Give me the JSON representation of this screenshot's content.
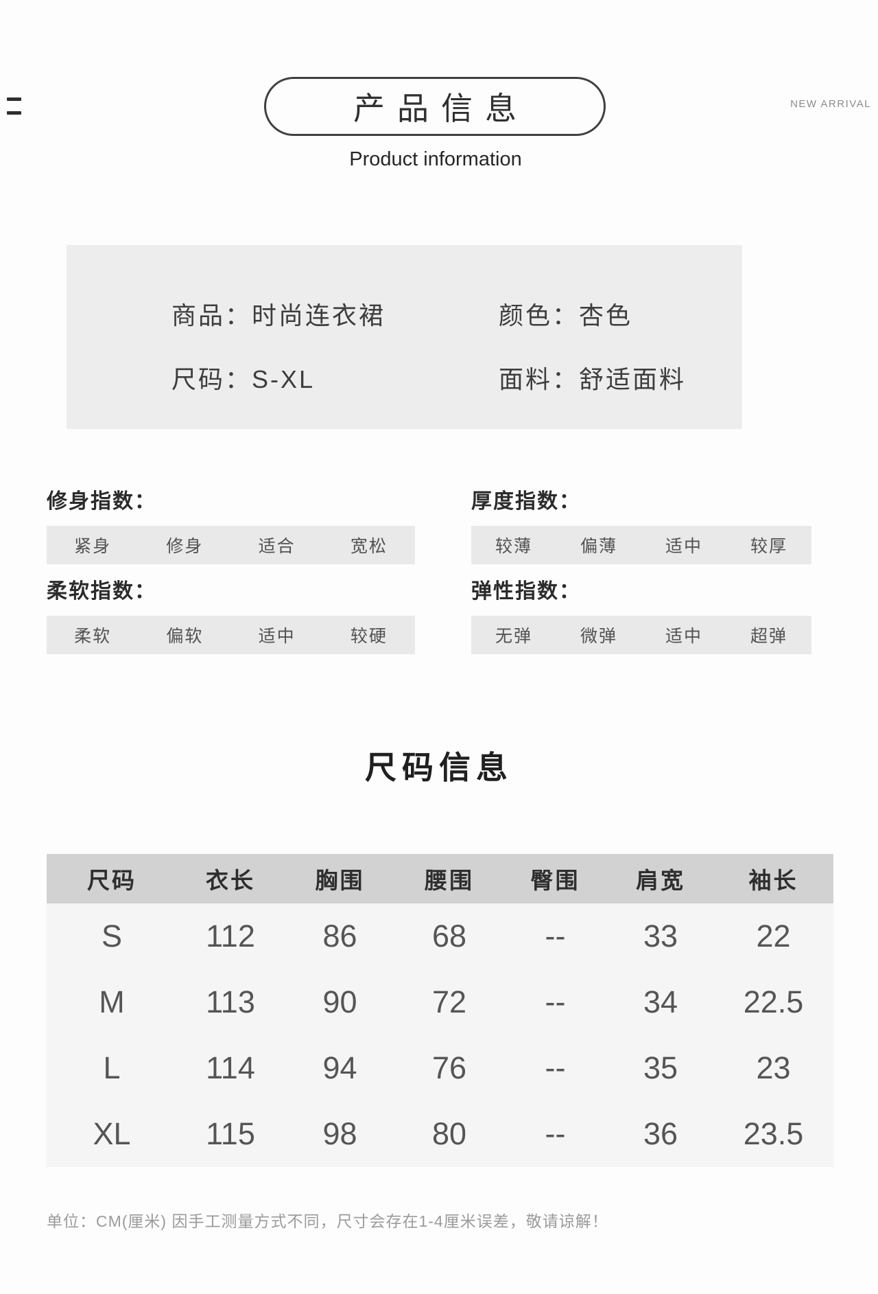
{
  "header": {
    "title_cn": "产品信息",
    "title_en": "Product information",
    "new_arrival": "NEW ARRIVAL"
  },
  "product_box": {
    "fields": [
      {
        "label": "商品：",
        "value": "时尚连衣裙"
      },
      {
        "label": "颜色：",
        "value": "杏色"
      },
      {
        "label": "尺码：",
        "value": "S-XL"
      },
      {
        "label": "面料：",
        "value": "舒适面料"
      }
    ]
  },
  "indices": [
    {
      "title": "修身指数：",
      "options": [
        "紧身",
        "修身",
        "适合",
        "宽松"
      ]
    },
    {
      "title": "厚度指数：",
      "options": [
        "较薄",
        "偏薄",
        "适中",
        "较厚"
      ]
    },
    {
      "title": "柔软指数：",
      "options": [
        "柔软",
        "偏软",
        "适中",
        "较硬"
      ]
    },
    {
      "title": "弹性指数：",
      "options": [
        "无弹",
        "微弹",
        "适中",
        "超弹"
      ]
    }
  ],
  "size_section": {
    "title": "尺码信息",
    "table": {
      "headers": [
        "尺码",
        "衣长",
        "胸围",
        "腰围",
        "臀围",
        "肩宽",
        "袖长"
      ],
      "rows": [
        [
          "S",
          "112",
          "86",
          "68",
          "--",
          "33",
          "22"
        ],
        [
          "M",
          "113",
          "90",
          "72",
          "--",
          "34",
          "22.5"
        ],
        [
          "L",
          "114",
          "94",
          "76",
          "--",
          "35",
          "23"
        ],
        [
          "XL",
          "115",
          "98",
          "80",
          "--",
          "36",
          "23.5"
        ]
      ]
    },
    "note": "单位：CM(厘米) 因手工测量方式不同，尺寸会存在1-4厘米误差，敬请谅解！"
  },
  "colors": {
    "box_bg": "#ededed",
    "bar_bg": "#e9e9e9",
    "table_header_bg": "#d2d2d2",
    "table_body_bg": "#f5f5f5",
    "text_dark": "#2b2b2b",
    "text_muted": "#9b9b9b"
  }
}
